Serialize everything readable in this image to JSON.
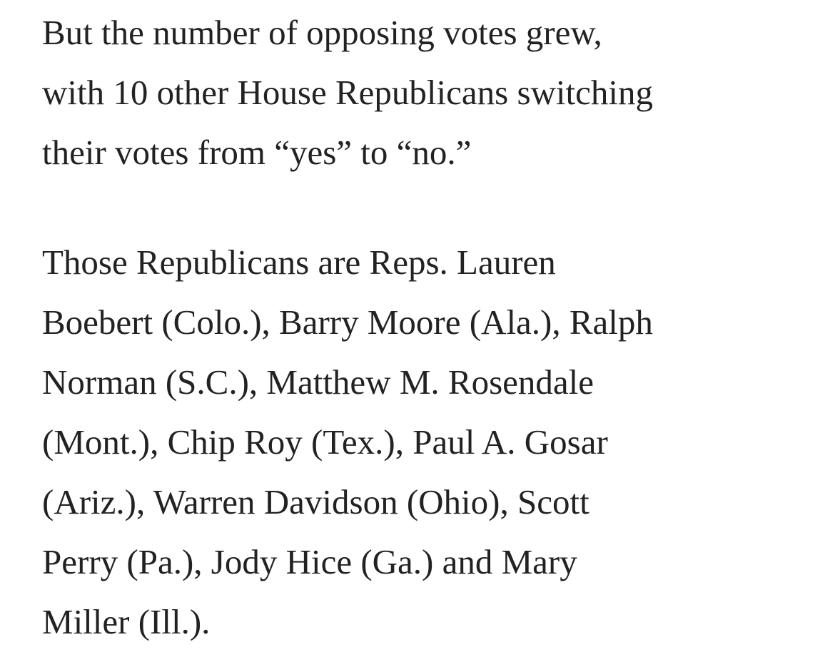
{
  "article": {
    "paragraphs": [
      {
        "lines": [
          "But the number of opposing votes grew,",
          "with 10 other House Republicans switching",
          "their votes from “yes” to “no.”"
        ]
      },
      {
        "lines": [
          "Those Republicans are Reps. Lauren",
          "Boebert (Colo.), Barry Moore (Ala.), Ralph",
          "Norman (S.C.), Matthew M. Rosendale",
          "(Mont.), Chip Roy (Tex.), Paul A. Gosar",
          "(Ariz.), Warren Davidson (Ohio), Scott",
          "Perry (Pa.), Jody Hice (Ga.) and Mary",
          "Miller (Ill.)."
        ]
      }
    ]
  },
  "colors": {
    "text": "#222222",
    "background": "#ffffff"
  }
}
